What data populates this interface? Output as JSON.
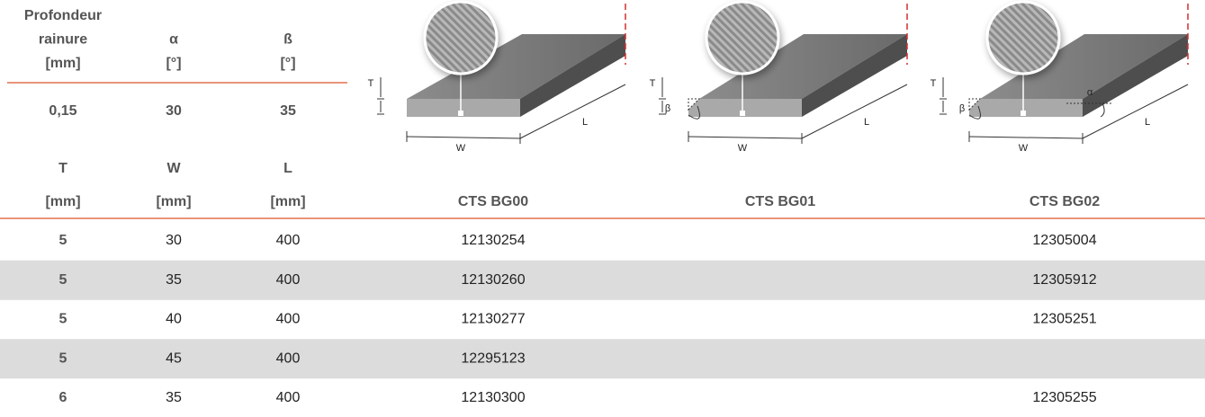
{
  "groove_table": {
    "headers": [
      [
        "Profondeur",
        "rainure",
        "[mm]"
      ],
      [
        "α",
        "[°]"
      ],
      [
        "ß",
        "[°]"
      ]
    ],
    "row": [
      "0,15",
      "30",
      "35"
    ]
  },
  "diagrams": [
    {
      "T": "T",
      "W": "W",
      "L": "L"
    },
    {
      "T": "T",
      "beta": "β",
      "W": "W",
      "L": "L"
    },
    {
      "T": "T",
      "beta": "β",
      "alpha": "α",
      "W": "W",
      "L": "L"
    }
  ],
  "table": {
    "headers": [
      [
        "T",
        "[mm]"
      ],
      [
        "W",
        "[mm]"
      ],
      [
        "L",
        "[mm]"
      ],
      [
        "CTS BG00"
      ],
      [
        "CTS BG01"
      ],
      [
        "CTS BG02"
      ]
    ],
    "rows": [
      [
        "5",
        "30",
        "400",
        "12130254",
        null,
        "12305004"
      ],
      [
        "5",
        "35",
        "400",
        "12130260",
        null,
        "12305912"
      ],
      [
        "5",
        "40",
        "400",
        "12130277",
        null,
        "12305251"
      ],
      [
        "5",
        "45",
        "400",
        "12295123",
        null,
        null
      ],
      [
        "6",
        "35",
        "400",
        "12130300",
        null,
        "12305255"
      ]
    ]
  }
}
